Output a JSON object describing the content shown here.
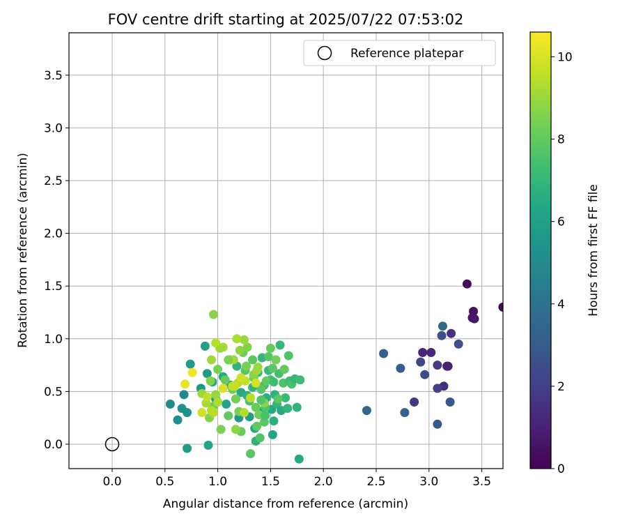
{
  "chart_data": {
    "type": "scatter",
    "title": "FOV centre drift starting at 2025/07/22 07:53:02",
    "xlabel": "Angular distance from reference (arcmin)",
    "ylabel": "Rotation from reference (arcmin)",
    "xlim": [
      -0.4,
      3.7
    ],
    "ylim": [
      -0.22,
      3.9
    ],
    "xticks": [
      0.0,
      0.5,
      1.0,
      1.5,
      2.0,
      2.5,
      3.0,
      3.5
    ],
    "yticks": [
      0.0,
      0.5,
      1.0,
      1.5,
      2.0,
      2.5,
      3.0,
      3.5
    ],
    "xtick_labels": [
      "0.0",
      "0.5",
      "1.0",
      "1.5",
      "2.0",
      "2.5",
      "3.0",
      "3.5"
    ],
    "ytick_labels": [
      "0.0",
      "0.5",
      "1.0",
      "1.5",
      "2.0",
      "2.5",
      "3.0",
      "3.5"
    ],
    "grid": true,
    "legend": {
      "placement": "top-right",
      "entries": [
        "Reference platepar"
      ]
    },
    "reference_point": {
      "name": "Reference platepar",
      "x": 0.0,
      "y": 0.0,
      "marker": "open-circle"
    },
    "colorbar": {
      "label": "Hours from first FF file",
      "range": [
        0,
        10.6
      ],
      "ticks": [
        0,
        2,
        4,
        6,
        8,
        10
      ],
      "tick_labels": [
        "0",
        "2",
        "4",
        "6",
        "8",
        "10"
      ],
      "colormap": "viridis"
    },
    "points": [
      [
        3.7,
        1.3,
        0.1
      ],
      [
        3.36,
        1.52,
        0.3
      ],
      [
        3.42,
        1.26,
        0.5
      ],
      [
        3.41,
        1.2,
        0.6
      ],
      [
        3.43,
        1.19,
        0.7
      ],
      [
        3.18,
        0.74,
        0.9
      ],
      [
        3.17,
        0.74,
        1.0
      ],
      [
        2.94,
        0.87,
        1.1
      ],
      [
        3.02,
        0.87,
        1.2
      ],
      [
        3.14,
        0.55,
        1.4
      ],
      [
        3.21,
        1.05,
        1.5
      ],
      [
        2.86,
        0.4,
        1.7
      ],
      [
        3.08,
        0.75,
        1.8
      ],
      [
        3.08,
        0.53,
        2.0
      ],
      [
        2.92,
        0.78,
        2.2
      ],
      [
        2.96,
        0.66,
        2.4
      ],
      [
        3.28,
        0.95,
        2.5
      ],
      [
        3.12,
        1.03,
        2.6
      ],
      [
        3.2,
        0.4,
        2.8
      ],
      [
        3.08,
        0.19,
        3.0
      ],
      [
        2.73,
        0.72,
        3.1
      ],
      [
        2.57,
        0.86,
        3.2
      ],
      [
        2.77,
        0.3,
        3.3
      ],
      [
        2.41,
        0.32,
        3.5
      ],
      [
        3.13,
        1.12,
        3.6
      ],
      [
        0.55,
        0.38,
        5.0
      ],
      [
        0.62,
        0.23,
        5.2
      ],
      [
        0.66,
        0.34,
        5.4
      ],
      [
        0.68,
        0.47,
        4.9
      ],
      [
        0.71,
        0.3,
        5.3
      ],
      [
        0.71,
        -0.04,
        5.8
      ],
      [
        0.74,
        0.76,
        5.6
      ],
      [
        0.84,
        0.53,
        5.5
      ],
      [
        0.88,
        0.93,
        6.0
      ],
      [
        0.9,
        0.67,
        5.7
      ],
      [
        0.91,
        -0.01,
        6.1
      ],
      [
        0.95,
        0.59,
        6.3
      ],
      [
        0.98,
        0.43,
        5.9
      ],
      [
        1.05,
        0.64,
        6.4
      ],
      [
        1.08,
        0.38,
        6.2
      ],
      [
        1.12,
        0.56,
        6.6
      ],
      [
        1.18,
        0.74,
        6.8
      ],
      [
        1.2,
        0.25,
        5.6
      ],
      [
        1.22,
        0.49,
        6.5
      ],
      [
        1.28,
        0.46,
        6.7
      ],
      [
        1.3,
        0.26,
        5.9
      ],
      [
        1.33,
        0.54,
        6.9
      ],
      [
        1.35,
        0.15,
        6.3
      ],
      [
        1.36,
        0.03,
        6.7
      ],
      [
        1.38,
        0.68,
        7.0
      ],
      [
        1.4,
        0.31,
        6.1
      ],
      [
        1.42,
        0.82,
        6.9
      ],
      [
        1.44,
        0.56,
        7.2
      ],
      [
        1.46,
        0.44,
        6.6
      ],
      [
        1.48,
        0.7,
        7.1
      ],
      [
        1.5,
        0.61,
        7.3
      ],
      [
        1.51,
        0.33,
        6.4
      ],
      [
        1.52,
        0.09,
        6.2
      ],
      [
        1.53,
        0.22,
        6.7
      ],
      [
        1.54,
        0.47,
        6.8
      ],
      [
        1.56,
        0.38,
        7.0
      ],
      [
        1.58,
        0.67,
        7.4
      ],
      [
        1.59,
        0.94,
        7.0
      ],
      [
        1.6,
        0.32,
        6.5
      ],
      [
        1.62,
        0.58,
        7.6
      ],
      [
        1.64,
        0.44,
        7.1
      ],
      [
        1.66,
        0.34,
        6.9
      ],
      [
        1.68,
        0.6,
        7.2
      ],
      [
        1.7,
        0.57,
        7.5
      ],
      [
        1.73,
        0.62,
        7.0
      ],
      [
        1.75,
        0.35,
        6.8
      ],
      [
        1.78,
        0.61,
        7.3
      ],
      [
        1.77,
        -0.14,
        6.4
      ],
      [
        1.31,
        -0.09,
        7.9
      ],
      [
        1.4,
        0.06,
        7.7
      ],
      [
        1.36,
        0.35,
        8.1
      ],
      [
        1.39,
        0.28,
        8.3
      ],
      [
        1.44,
        0.21,
        7.9
      ],
      [
        1.46,
        0.6,
        8.0
      ],
      [
        1.48,
        0.83,
        7.8
      ],
      [
        1.5,
        0.91,
        8.1
      ],
      [
        1.52,
        0.72,
        7.9
      ],
      [
        1.55,
        0.8,
        8.3
      ],
      [
        1.57,
        0.43,
        7.9
      ],
      [
        1.63,
        0.71,
        8.0
      ],
      [
        1.67,
        0.84,
        7.7
      ],
      [
        1.45,
        0.35,
        7.6
      ],
      [
        1.41,
        0.52,
        7.8
      ],
      [
        1.34,
        0.63,
        8.0
      ],
      [
        1.3,
        0.41,
        7.6
      ],
      [
        1.26,
        0.7,
        7.7
      ],
      [
        1.24,
        0.87,
        8.2
      ],
      [
        1.22,
        0.12,
        8.1
      ],
      [
        1.2,
        0.31,
        8.4
      ],
      [
        1.17,
        0.43,
        8.3
      ],
      [
        1.14,
        0.52,
        8.2
      ],
      [
        1.1,
        0.27,
        8.0
      ],
      [
        1.07,
        0.61,
        8.1
      ],
      [
        1.03,
        0.14,
        8.5
      ],
      [
        1.0,
        0.71,
        8.4
      ],
      [
        0.96,
        0.36,
        8.2
      ],
      [
        0.93,
        0.6,
        8.6
      ],
      [
        0.92,
        0.25,
        8.6
      ],
      [
        0.96,
        1.23,
        8.7
      ],
      [
        1.15,
        0.8,
        8.9
      ],
      [
        1.21,
        0.89,
        8.8
      ],
      [
        1.28,
        0.92,
        8.6
      ],
      [
        1.34,
        0.66,
        8.7
      ],
      [
        1.37,
        0.7,
        9.1
      ],
      [
        1.25,
        0.99,
        9.0
      ],
      [
        1.17,
        0.14,
        8.8
      ],
      [
        1.05,
        0.92,
        9.2
      ],
      [
        1.02,
        0.91,
        9.0
      ],
      [
        0.94,
        0.8,
        9.1
      ],
      [
        0.98,
        0.47,
        8.9
      ],
      [
        1.0,
        0.4,
        9.3
      ],
      [
        0.85,
        0.48,
        9.0
      ],
      [
        0.89,
        0.39,
        9.2
      ],
      [
        0.94,
        0.32,
        9.4
      ],
      [
        0.96,
        0.3,
        9.5
      ],
      [
        1.19,
        0.58,
        9.4
      ],
      [
        1.12,
        0.8,
        9.3
      ],
      [
        1.26,
        0.6,
        9.6
      ],
      [
        1.14,
        0.55,
        9.7
      ],
      [
        1.18,
        1.0,
        9.2
      ],
      [
        1.22,
        0.63,
        9.8
      ],
      [
        1.16,
        0.55,
        9.7
      ],
      [
        1.31,
        0.44,
        9.5
      ],
      [
        1.36,
        0.58,
        9.9
      ],
      [
        1.25,
        0.3,
        9.3
      ],
      [
        1.05,
        0.53,
        10.0
      ],
      [
        0.69,
        0.57,
        10.2
      ],
      [
        0.76,
        0.68,
        10.4
      ],
      [
        0.85,
        0.3,
        9.8
      ],
      [
        0.9,
        0.45,
        9.6
      ],
      [
        0.98,
        0.96,
        9.4
      ],
      [
        1.38,
        0.73,
        9.0
      ],
      [
        1.44,
        0.39,
        8.7
      ],
      [
        1.1,
        0.8,
        8.5
      ],
      [
        1.27,
        0.74,
        8.4
      ],
      [
        1.33,
        0.8,
        7.9
      ],
      [
        1.45,
        0.27,
        7.5
      ],
      [
        1.53,
        0.59,
        7.3
      ],
      [
        1.41,
        0.42,
        7.7
      ],
      [
        1.37,
        0.17,
        8.0
      ]
    ]
  }
}
